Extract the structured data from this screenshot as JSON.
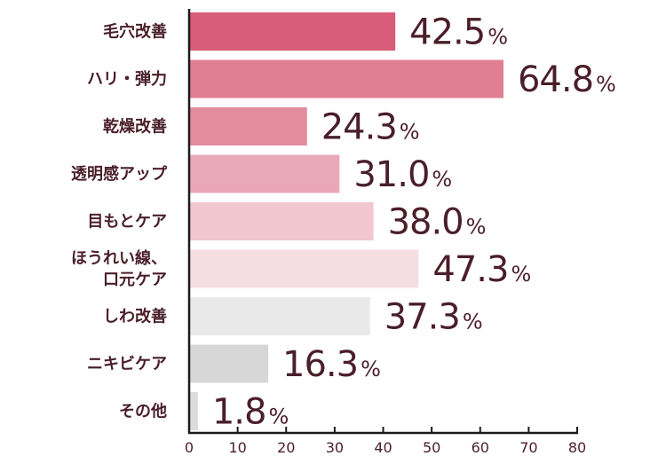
{
  "chart_data": {
    "type": "bar",
    "orientation": "horizontal",
    "title": "",
    "xlabel": "",
    "ylabel": "",
    "xlim": [
      0,
      80
    ],
    "xticks": [
      0,
      10,
      20,
      30,
      40,
      50,
      60,
      70,
      80
    ],
    "grid": false,
    "legend": "none",
    "unit": "%",
    "categories": [
      [
        "毛穴改善"
      ],
      [
        "ハリ・弾力"
      ],
      [
        "乾燥改善"
      ],
      [
        "透明感アップ"
      ],
      [
        "目もとケア"
      ],
      [
        "ほうれい線、",
        "口元ケア"
      ],
      [
        "しわ改善"
      ],
      [
        "ニキビケア"
      ],
      [
        "その他"
      ]
    ],
    "values": [
      42.5,
      64.8,
      24.3,
      31.0,
      38.0,
      47.3,
      37.3,
      16.3,
      1.8
    ],
    "value_labels": [
      "42.5",
      "64.8",
      "24.3",
      "31.0",
      "38.0",
      "47.3",
      "37.3",
      "16.3",
      "1.8"
    ],
    "colors": [
      "#d75d78",
      "#e07e93",
      "#e28c9d",
      "#e8a8b6",
      "#f1c6cf",
      "#f6dde2",
      "#e9e9e9",
      "#d7d7d7",
      "#dcdcdc"
    ],
    "text_color": "#4a1e2a",
    "axis_color": "#1a1a1a"
  }
}
